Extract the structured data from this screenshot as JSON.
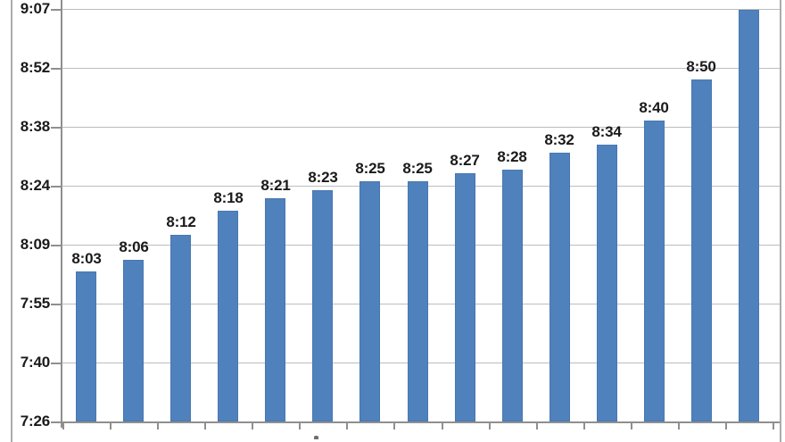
{
  "chart_data": {
    "type": "bar",
    "title": "",
    "xlabel": "",
    "ylabel": "",
    "grid": true,
    "legend": "none",
    "bars": [
      {
        "label": "8:03",
        "time": "8:03",
        "minutes": 483
      },
      {
        "label": "8:06",
        "time": "8:06",
        "minutes": 486
      },
      {
        "label": "8:12",
        "time": "8:12",
        "minutes": 492
      },
      {
        "label": "8:18",
        "time": "8:18",
        "minutes": 498
      },
      {
        "label": "8:21",
        "time": "8:21",
        "minutes": 501
      },
      {
        "label": "8:23",
        "time": "8:23",
        "minutes": 503
      },
      {
        "label": "8:25",
        "time": "8:25",
        "minutes": 505
      },
      {
        "label": "8:25",
        "time": "8:25",
        "minutes": 505
      },
      {
        "label": "8:27",
        "time": "8:27",
        "minutes": 507
      },
      {
        "label": "8:28",
        "time": "8:28",
        "minutes": 508
      },
      {
        "label": "8:32",
        "time": "8:32",
        "minutes": 512
      },
      {
        "label": "8:34",
        "time": "8:34",
        "minutes": 514
      },
      {
        "label": "8:40",
        "time": "8:40",
        "minutes": 520
      },
      {
        "label": "8:50",
        "time": "8:50",
        "minutes": 530
      },
      {
        "label": "",
        "time": "9:07",
        "minutes": 547
      }
    ],
    "y_axis": {
      "min_label": "7:26",
      "max_label": "9:07",
      "min_minutes": 446.4,
      "max_minutes": 547.2,
      "ticks": [
        {
          "label": "9:07",
          "minutes": 547.2
        },
        {
          "label": "8:52",
          "minutes": 532.8
        },
        {
          "label": "8:38",
          "minutes": 518.4
        },
        {
          "label": "8:24",
          "minutes": 504.0
        },
        {
          "label": "8:09",
          "minutes": 489.6
        },
        {
          "label": "7:55",
          "minutes": 475.2
        },
        {
          "label": "7:40",
          "minutes": 460.8
        },
        {
          "label": "7:26",
          "minutes": 446.4
        }
      ]
    },
    "x_axis": {
      "tick_count": 16,
      "labels_visible": false
    },
    "colors": {
      "bar_fill": "#4F81BD",
      "bar_edge": "#4877B0",
      "gridline": "#BDBDBD",
      "axis": "#8F8F8F",
      "chart_border": "#ABABAB",
      "text": "#1A1A1A"
    }
  }
}
